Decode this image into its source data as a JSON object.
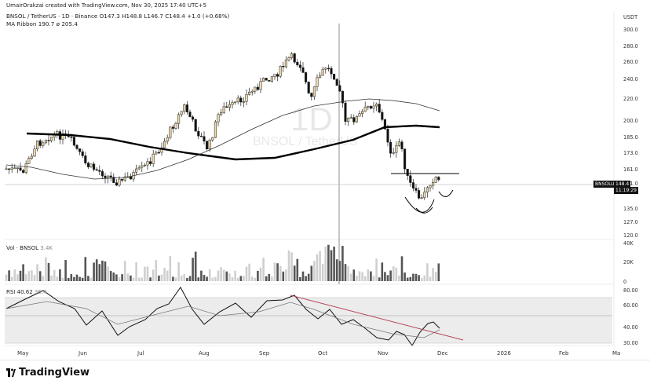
{
  "header": {
    "credit": "UmairOrakzai created with TradingView.com, Nov 30, 2025 17:40 UTC+5"
  },
  "symbol": {
    "title": "BNSOL / TetherUS · 1D · Binance",
    "ohlc": "O147.3 H148.8 L146.7 C148.4 +1.0 (+0.68%)",
    "ma_label": "MA Ribbon",
    "ma_values": "190.7  ø  205.4"
  },
  "watermark": {
    "interval": "1D",
    "pair": "BNSOL / TetherUS"
  },
  "price_axis": {
    "currency": "USDT",
    "ticks": [
      "300.0",
      "280.0",
      "260.0",
      "240.0",
      "220.0",
      "200.0",
      "185.0",
      "173.0",
      "161.0",
      "151.0",
      "135.0",
      "127.0",
      "120.0"
    ]
  },
  "price_tags": {
    "symbol": "BNSOLUSDT",
    "price": "148.4",
    "countdown": "11:19:29"
  },
  "volume": {
    "label": "Vol · BNSOL",
    "value": "3.4K",
    "ticks": [
      "40K",
      "20K",
      "0"
    ]
  },
  "rsi": {
    "label": "RSI",
    "value1": "40.62",
    "value2": "36.4",
    "ticks": [
      "80.00",
      "60.00",
      "40.00",
      "30.00"
    ]
  },
  "time_axis": {
    "labels": [
      "May",
      "Jun",
      "Jul",
      "Aug",
      "Sep",
      "Oct",
      "Nov",
      "Dec",
      "2026",
      "Feb",
      "Ma"
    ]
  },
  "footer": {
    "brand": "TradingView"
  },
  "colors": {
    "up": "#111111",
    "down": "#111111",
    "up_fill": "#f0d9a8",
    "ma_fast": "#111111",
    "ma_slow": "#000000",
    "trendline": "#b3475b",
    "rsi_band": "#e8e8e8"
  },
  "chart_data": {
    "type": "candlestick",
    "ylim": [
      115,
      305
    ],
    "note": "",
    "series": [
      {
        "name": "MA Ribbon",
        "values": []
      }
    ]
  }
}
